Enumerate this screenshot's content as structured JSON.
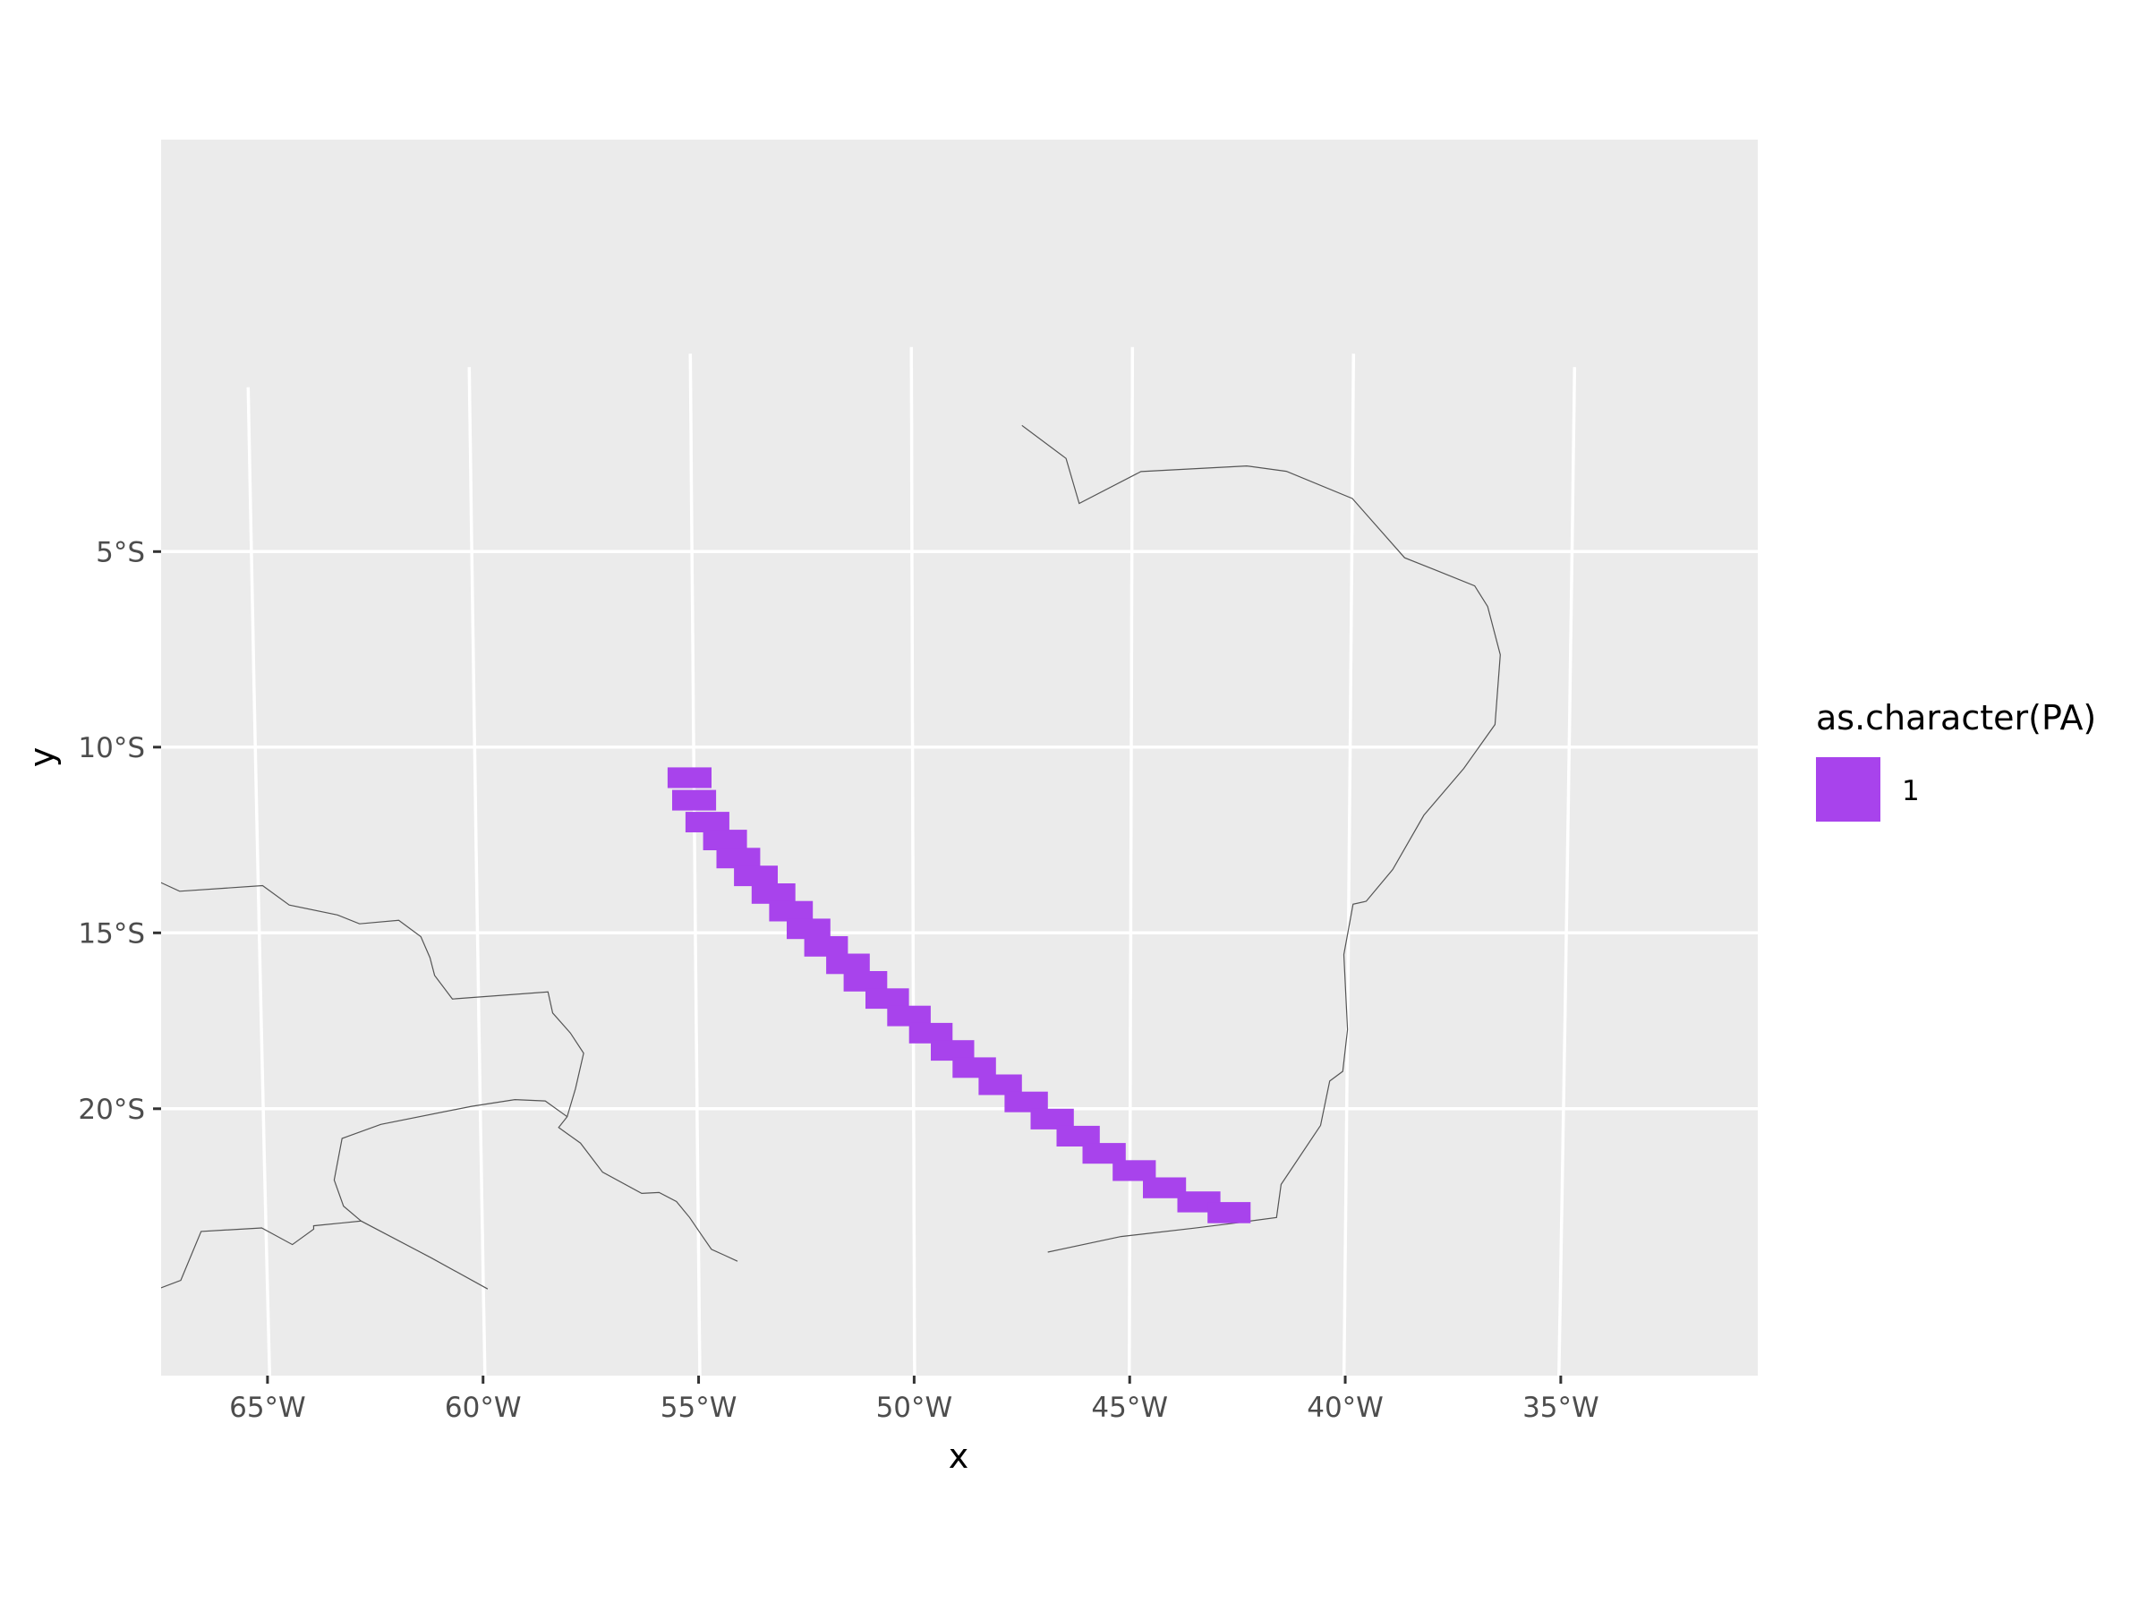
{
  "chart_data": {
    "type": "map",
    "xlabel": "x",
    "ylabel": "y",
    "graticule": true,
    "lon_ticks": [
      {
        "value": -65,
        "label": "65°W"
      },
      {
        "value": -60,
        "label": "60°W"
      },
      {
        "value": -55,
        "label": "55°W"
      },
      {
        "value": -50,
        "label": "50°W"
      },
      {
        "value": -45,
        "label": "45°W"
      },
      {
        "value": -40,
        "label": "40°W"
      },
      {
        "value": -35,
        "label": "35°W"
      }
    ],
    "lat_ticks": [
      {
        "value": -5,
        "label": "5°S"
      },
      {
        "value": -10,
        "label": "10°S"
      },
      {
        "value": -15,
        "label": "15°S"
      },
      {
        "value": -20,
        "label": "20°S"
      }
    ],
    "legend": {
      "title": "as.character(PA)",
      "placement": "right",
      "entries": [
        {
          "label": "1",
          "color": "#a843ec"
        }
      ]
    },
    "fill_color": "#a843ec",
    "panel_color": "#ebebeb",
    "grid_color": "#ffffff",
    "border_color": "#555555",
    "band_cells": [
      {
        "lon": -55.6,
        "lat": -10.6
      },
      {
        "lon": -55.5,
        "lat": -11.2
      },
      {
        "lon": -55.2,
        "lat": -11.8
      },
      {
        "lon": -54.8,
        "lat": -12.3
      },
      {
        "lon": -54.5,
        "lat": -12.8
      },
      {
        "lon": -54.1,
        "lat": -13.3
      },
      {
        "lon": -53.7,
        "lat": -13.8
      },
      {
        "lon": -53.3,
        "lat": -14.3
      },
      {
        "lon": -52.9,
        "lat": -14.8
      },
      {
        "lon": -52.5,
        "lat": -15.3
      },
      {
        "lon": -52.0,
        "lat": -15.8
      },
      {
        "lon": -51.6,
        "lat": -16.3
      },
      {
        "lon": -51.1,
        "lat": -16.8
      },
      {
        "lon": -50.6,
        "lat": -17.3
      },
      {
        "lon": -50.1,
        "lat": -17.8
      },
      {
        "lon": -49.6,
        "lat": -18.3
      },
      {
        "lon": -49.1,
        "lat": -18.8
      },
      {
        "lon": -48.5,
        "lat": -19.3
      },
      {
        "lon": -47.9,
        "lat": -19.8
      },
      {
        "lon": -47.3,
        "lat": -20.3
      },
      {
        "lon": -46.7,
        "lat": -20.8
      },
      {
        "lon": -46.1,
        "lat": -21.3
      },
      {
        "lon": -45.4,
        "lat": -21.8
      },
      {
        "lon": -44.7,
        "lat": -22.3
      },
      {
        "lon": -43.9,
        "lat": -22.7
      },
      {
        "lon": -43.2,
        "lat": -23.0
      }
    ],
    "borders": [
      [
        [
          -47.5,
          -1.9
        ],
        [
          -46.5,
          -2.7
        ],
        [
          -46.2,
          -3.8
        ],
        [
          -44.8,
          -3.0
        ],
        [
          -42.4,
          -2.8
        ],
        [
          -41.5,
          -2.9
        ],
        [
          -40.0,
          -3.5
        ],
        [
          -38.8,
          -4.9
        ],
        [
          -38.0,
          -5.2
        ],
        [
          -37.2,
          -5.5
        ],
        [
          -36.9,
          -6.0
        ],
        [
          -36.6,
          -7.2
        ],
        [
          -36.7,
          -9.0
        ],
        [
          -37.4,
          -10.2
        ],
        [
          -38.3,
          -11.5
        ],
        [
          -39.0,
          -13.0
        ],
        [
          -39.6,
          -13.9
        ],
        [
          -39.9,
          -14.0
        ],
        [
          -40.1,
          -15.4
        ],
        [
          -40.0,
          -17.5
        ],
        [
          -40.1,
          -18.7
        ],
        [
          -40.4,
          -19.0
        ],
        [
          -40.6,
          -20.3
        ],
        [
          -41.5,
          -22.1
        ],
        [
          -41.6,
          -23.1
        ],
        [
          -42.5,
          -23.3
        ],
        [
          -43.5,
          -23.5
        ],
        [
          -45.2,
          -23.8
        ],
        [
          -46.9,
          -24.3
        ]
      ],
      [
        [
          -68.1,
          -11.6
        ],
        [
          -66.8,
          -12.5
        ],
        [
          -64.9,
          -12.6
        ],
        [
          -64.3,
          -13.2
        ],
        [
          -63.2,
          -13.6
        ],
        [
          -62.7,
          -13.9
        ],
        [
          -61.8,
          -13.9
        ],
        [
          -61.3,
          -14.4
        ],
        [
          -61.1,
          -15.0
        ],
        [
          -61.0,
          -15.5
        ],
        [
          -60.6,
          -16.2
        ],
        [
          -58.4,
          -16.2
        ],
        [
          -58.3,
          -16.8
        ],
        [
          -57.9,
          -17.4
        ],
        [
          -57.6,
          -18.0
        ],
        [
          -57.8,
          -19.0
        ],
        [
          -58.0,
          -19.8
        ],
        [
          -58.2,
          -20.1
        ],
        [
          -57.7,
          -20.6
        ],
        [
          -57.2,
          -21.5
        ],
        [
          -56.3,
          -22.2
        ],
        [
          -55.9,
          -22.2
        ],
        [
          -55.5,
          -22.5
        ],
        [
          -55.2,
          -23.0
        ],
        [
          -54.9,
          -23.6
        ],
        [
          -54.7,
          -24.0
        ],
        [
          -54.4,
          -24.2
        ],
        [
          -54.1,
          -24.4
        ]
      ],
      [
        [
          -68.4,
          -24.0
        ],
        [
          -67.6,
          -23.8
        ],
        [
          -67.0,
          -23.6
        ],
        [
          -66.5,
          -22.2
        ],
        [
          -65.1,
          -22.3
        ],
        [
          -64.4,
          -22.9
        ],
        [
          -63.9,
          -22.5
        ],
        [
          -63.9,
          -22.4
        ],
        [
          -62.8,
          -22.4
        ],
        [
          -61.2,
          -23.7
        ],
        [
          -59.9,
          -24.8
        ]
      ],
      [
        [
          -58.0,
          -19.8
        ],
        [
          -58.5,
          -19.3
        ],
        [
          -59.2,
          -19.2
        ],
        [
          -60.2,
          -19.3
        ],
        [
          -62.3,
          -19.6
        ],
        [
          -63.2,
          -19.9
        ],
        [
          -63.4,
          -21.1
        ],
        [
          -63.2,
          -21.9
        ],
        [
          -62.8,
          -22.4
        ]
      ]
    ]
  }
}
